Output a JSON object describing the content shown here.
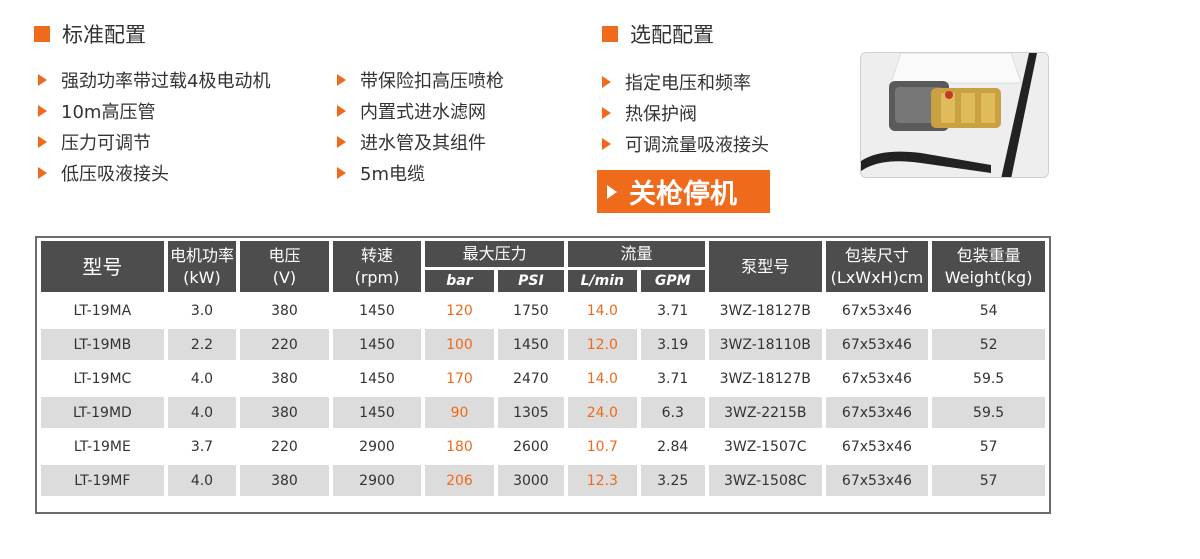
{
  "standard": {
    "title": "标准配置",
    "col1": [
      "强劲功率带过载4极电动机",
      "10m高压管",
      "压力可调节",
      "低压吸液接头"
    ],
    "col2": [
      "带保险扣高压喷枪",
      "内置式进水滤网",
      "进水管及其组件",
      "5m电缆"
    ]
  },
  "optional": {
    "title": "选配配置",
    "items": [
      "指定电压和频率",
      "热保护阀",
      "可调流量吸液接头"
    ],
    "badge": "关枪停机"
  },
  "table": {
    "headers": {
      "model": "型号",
      "power": [
        "电机功率",
        "(kW)"
      ],
      "voltage": [
        "电压",
        "(V)"
      ],
      "speed": [
        "转速",
        "(rpm)"
      ],
      "max_pressure": "最大压力",
      "flow": "流量",
      "pump": "泵型号",
      "package": [
        "包装尺寸",
        "(LxWxH)cm"
      ],
      "weight": [
        "包装重量",
        "Weight(kg)"
      ],
      "bar": "bar",
      "psi": "PSI",
      "lmin": "L/min",
      "gpm": "GPM"
    },
    "rows": [
      [
        "LT-19MA",
        "3.0",
        "380",
        "1450",
        "120",
        "1750",
        "14.0",
        "3.71",
        "3WZ-18127B",
        "67x53x46",
        "54"
      ],
      [
        "LT-19MB",
        "2.2",
        "220",
        "1450",
        "100",
        "1450",
        "12.0",
        "3.19",
        "3WZ-18110B",
        "67x53x46",
        "52"
      ],
      [
        "LT-19MC",
        "4.0",
        "380",
        "1450",
        "170",
        "2470",
        "14.0",
        "3.71",
        "3WZ-18127B",
        "67x53x46",
        "59.5"
      ],
      [
        "LT-19MD",
        "4.0",
        "380",
        "1450",
        "90",
        "1305",
        "24.0",
        "6.3",
        "3WZ-2215B",
        "67x53x46",
        "59.5"
      ],
      [
        "LT-19ME",
        "3.7",
        "220",
        "2900",
        "180",
        "2600",
        "10.7",
        "2.84",
        "3WZ-1507C",
        "67x53x46",
        "57"
      ],
      [
        "LT-19MF",
        "4.0",
        "380",
        "2900",
        "206",
        "3000",
        "12.3",
        "3.25",
        "3WZ-1508C",
        "67x53x46",
        "57"
      ]
    ]
  },
  "colors": {
    "accent": "#ef6a1a",
    "header": "#4d4d4d",
    "alt_row": "#dcdcdc"
  },
  "icons": {
    "bullet": "orange-triangle-icon",
    "section": "orange-square-icon"
  }
}
